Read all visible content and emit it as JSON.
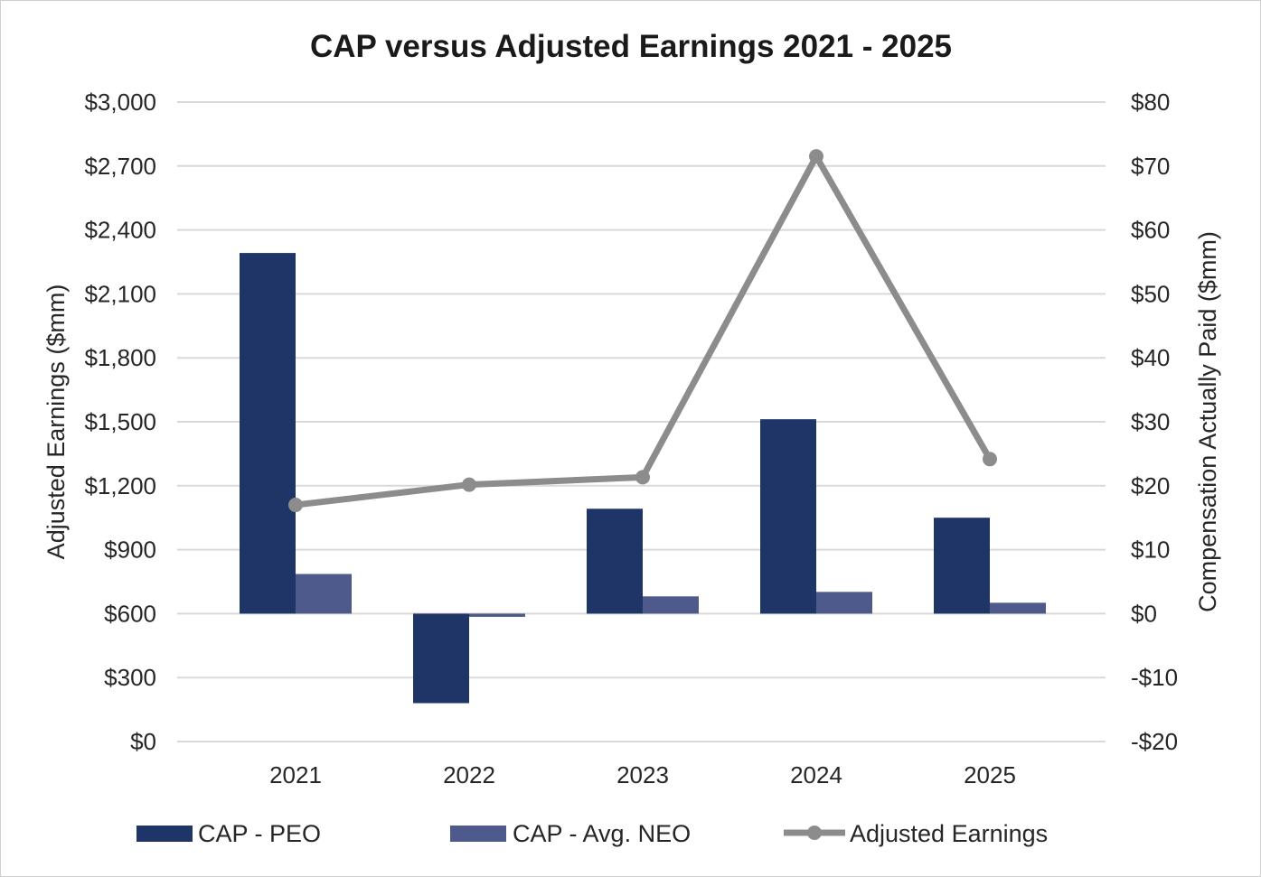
{
  "chart_data": {
    "type": "bar+line",
    "title": "CAP versus Adjusted Earnings 2021 - 2025",
    "categories": [
      "2021",
      "2022",
      "2023",
      "2024",
      "2025"
    ],
    "left_axis": {
      "label": "Adjusted Earnings ($mm)",
      "ylim": [
        0,
        3000
      ],
      "ticks": [
        0,
        300,
        600,
        900,
        1200,
        1500,
        1800,
        2100,
        2400,
        2700,
        3000
      ],
      "tick_labels": [
        "$0",
        "$300",
        "$600",
        "$900",
        "$1,200",
        "$1,500",
        "$1,800",
        "$2,100",
        "$2,400",
        "$2,700",
        "$3,000"
      ]
    },
    "right_axis": {
      "label": "Compensation Actually Paid ($mm)",
      "ylim": [
        -20,
        80
      ],
      "ticks": [
        -20,
        -10,
        0,
        10,
        20,
        30,
        40,
        50,
        60,
        70,
        80
      ],
      "tick_labels": [
        "-$20",
        "-$10",
        "$0",
        "$10",
        "$20",
        "$30",
        "$40",
        "$50",
        "$60",
        "$70",
        "$80"
      ]
    },
    "series": [
      {
        "name": "CAP - PEO",
        "kind": "bar",
        "axis": "right",
        "color": "#1f3467",
        "values": [
          56.4,
          -14.0,
          16.4,
          30.4,
          15.0
        ]
      },
      {
        "name": "CAP - Avg. NEO",
        "kind": "bar",
        "axis": "right",
        "color": "#4f5a8c",
        "values": [
          6.2,
          -0.5,
          2.7,
          3.4,
          1.7
        ]
      },
      {
        "name": "Adjusted Earnings",
        "kind": "line",
        "axis": "left",
        "color": "#8c8c8c",
        "values": [
          1110,
          1205,
          1240,
          2745,
          1325
        ]
      }
    ],
    "legend_position": "bottom",
    "grid": true
  }
}
